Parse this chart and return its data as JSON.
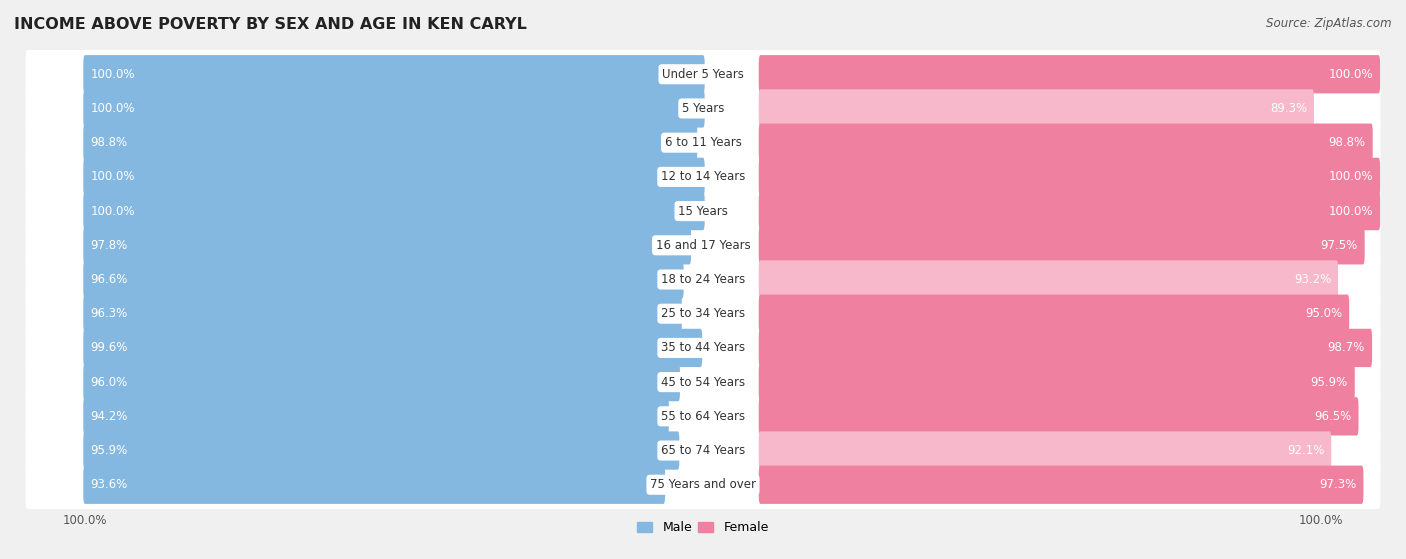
{
  "title": "INCOME ABOVE POVERTY BY SEX AND AGE IN KEN CARYL",
  "source": "Source: ZipAtlas.com",
  "categories": [
    "Under 5 Years",
    "5 Years",
    "6 to 11 Years",
    "12 to 14 Years",
    "15 Years",
    "16 and 17 Years",
    "18 to 24 Years",
    "25 to 34 Years",
    "35 to 44 Years",
    "45 to 54 Years",
    "55 to 64 Years",
    "65 to 74 Years",
    "75 Years and over"
  ],
  "male_values": [
    100.0,
    100.0,
    98.8,
    100.0,
    100.0,
    97.8,
    96.6,
    96.3,
    99.6,
    96.0,
    94.2,
    95.9,
    93.6
  ],
  "female_values": [
    100.0,
    89.3,
    98.8,
    100.0,
    100.0,
    97.5,
    93.2,
    95.0,
    98.7,
    95.9,
    96.5,
    92.1,
    97.3
  ],
  "male_color": "#85b8e0",
  "female_color": "#f080a0",
  "male_color_light": "#b8d8f0",
  "female_color_light": "#f8b8cc",
  "male_label": "Male",
  "female_label": "Female",
  "background_color": "#f0f0f0",
  "row_bg_color": "#e8e8e8",
  "title_fontsize": 11.5,
  "value_fontsize": 8.5,
  "label_fontsize": 8.5,
  "legend_fontsize": 9,
  "source_fontsize": 8.5,
  "bottom_tick_label": "100.0%"
}
